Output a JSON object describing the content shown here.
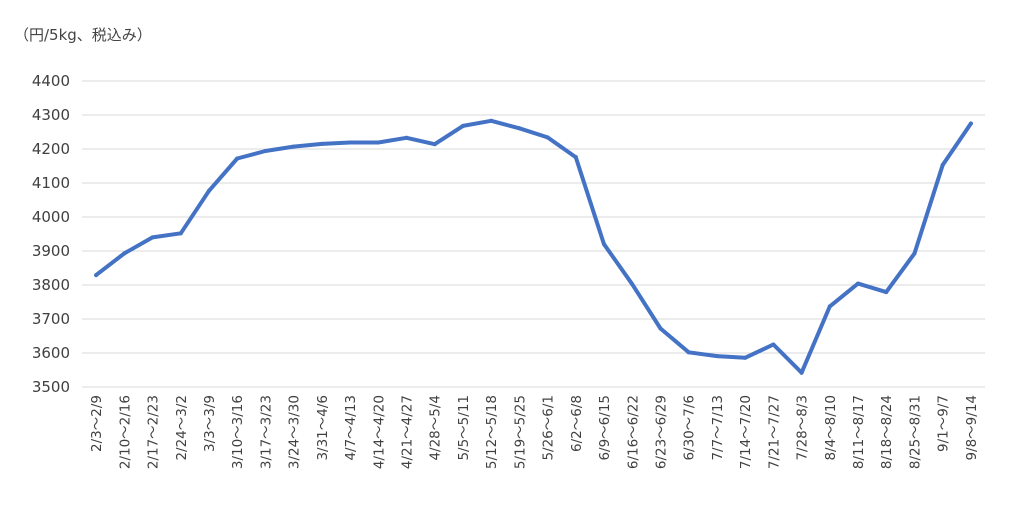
{
  "chart_data": {
    "type": "line",
    "title": "",
    "unit_label": "（円/5kg、税込み）",
    "xlabel": "",
    "ylabel": "",
    "ylim": [
      3500,
      4400
    ],
    "y_ticks": [
      "3500",
      "3600",
      "3700",
      "3800",
      "3900",
      "4000",
      "4100",
      "4200",
      "4300",
      "4400"
    ],
    "grid": true,
    "legend": "none",
    "line_color": "#4472c4",
    "categories": [
      "2/3〜2/9",
      "2/10〜2/16",
      "2/17〜2/23",
      "2/24〜3/2",
      "3/3〜3/9",
      "3/10〜3/16",
      "3/17〜3/23",
      "3/24〜3/30",
      "3/31〜4/6",
      "4/7〜4/13",
      "4/14〜4/20",
      "4/21〜4/27",
      "4/28〜5/4",
      "5/5〜5/11",
      "5/12〜5/18",
      "5/19〜5/25",
      "5/26〜6/1",
      "6/2〜6/8",
      "6/9〜6/15",
      "6/16〜6/22",
      "6/23〜6/29",
      "6/30〜7/6",
      "7/7〜7/13",
      "7/14〜7/20",
      "7/21〜7/27",
      "7/28〜8/3",
      "8/4〜8/10",
      "8/11〜8/17",
      "8/18〜8/24",
      "8/25〜8/31",
      "9/1〜9/7",
      "9/8〜9/14"
    ],
    "values": [
      3829,
      3893,
      3940,
      3952,
      4077,
      4172,
      4194,
      4207,
      4215,
      4219,
      4219,
      4233,
      4214,
      4268,
      4283,
      4261,
      4234,
      4176,
      3920,
      3802,
      3672,
      3602,
      3591,
      3586,
      3625,
      3542,
      3737,
      3804,
      3779,
      3893,
      4153,
      4275
    ]
  }
}
